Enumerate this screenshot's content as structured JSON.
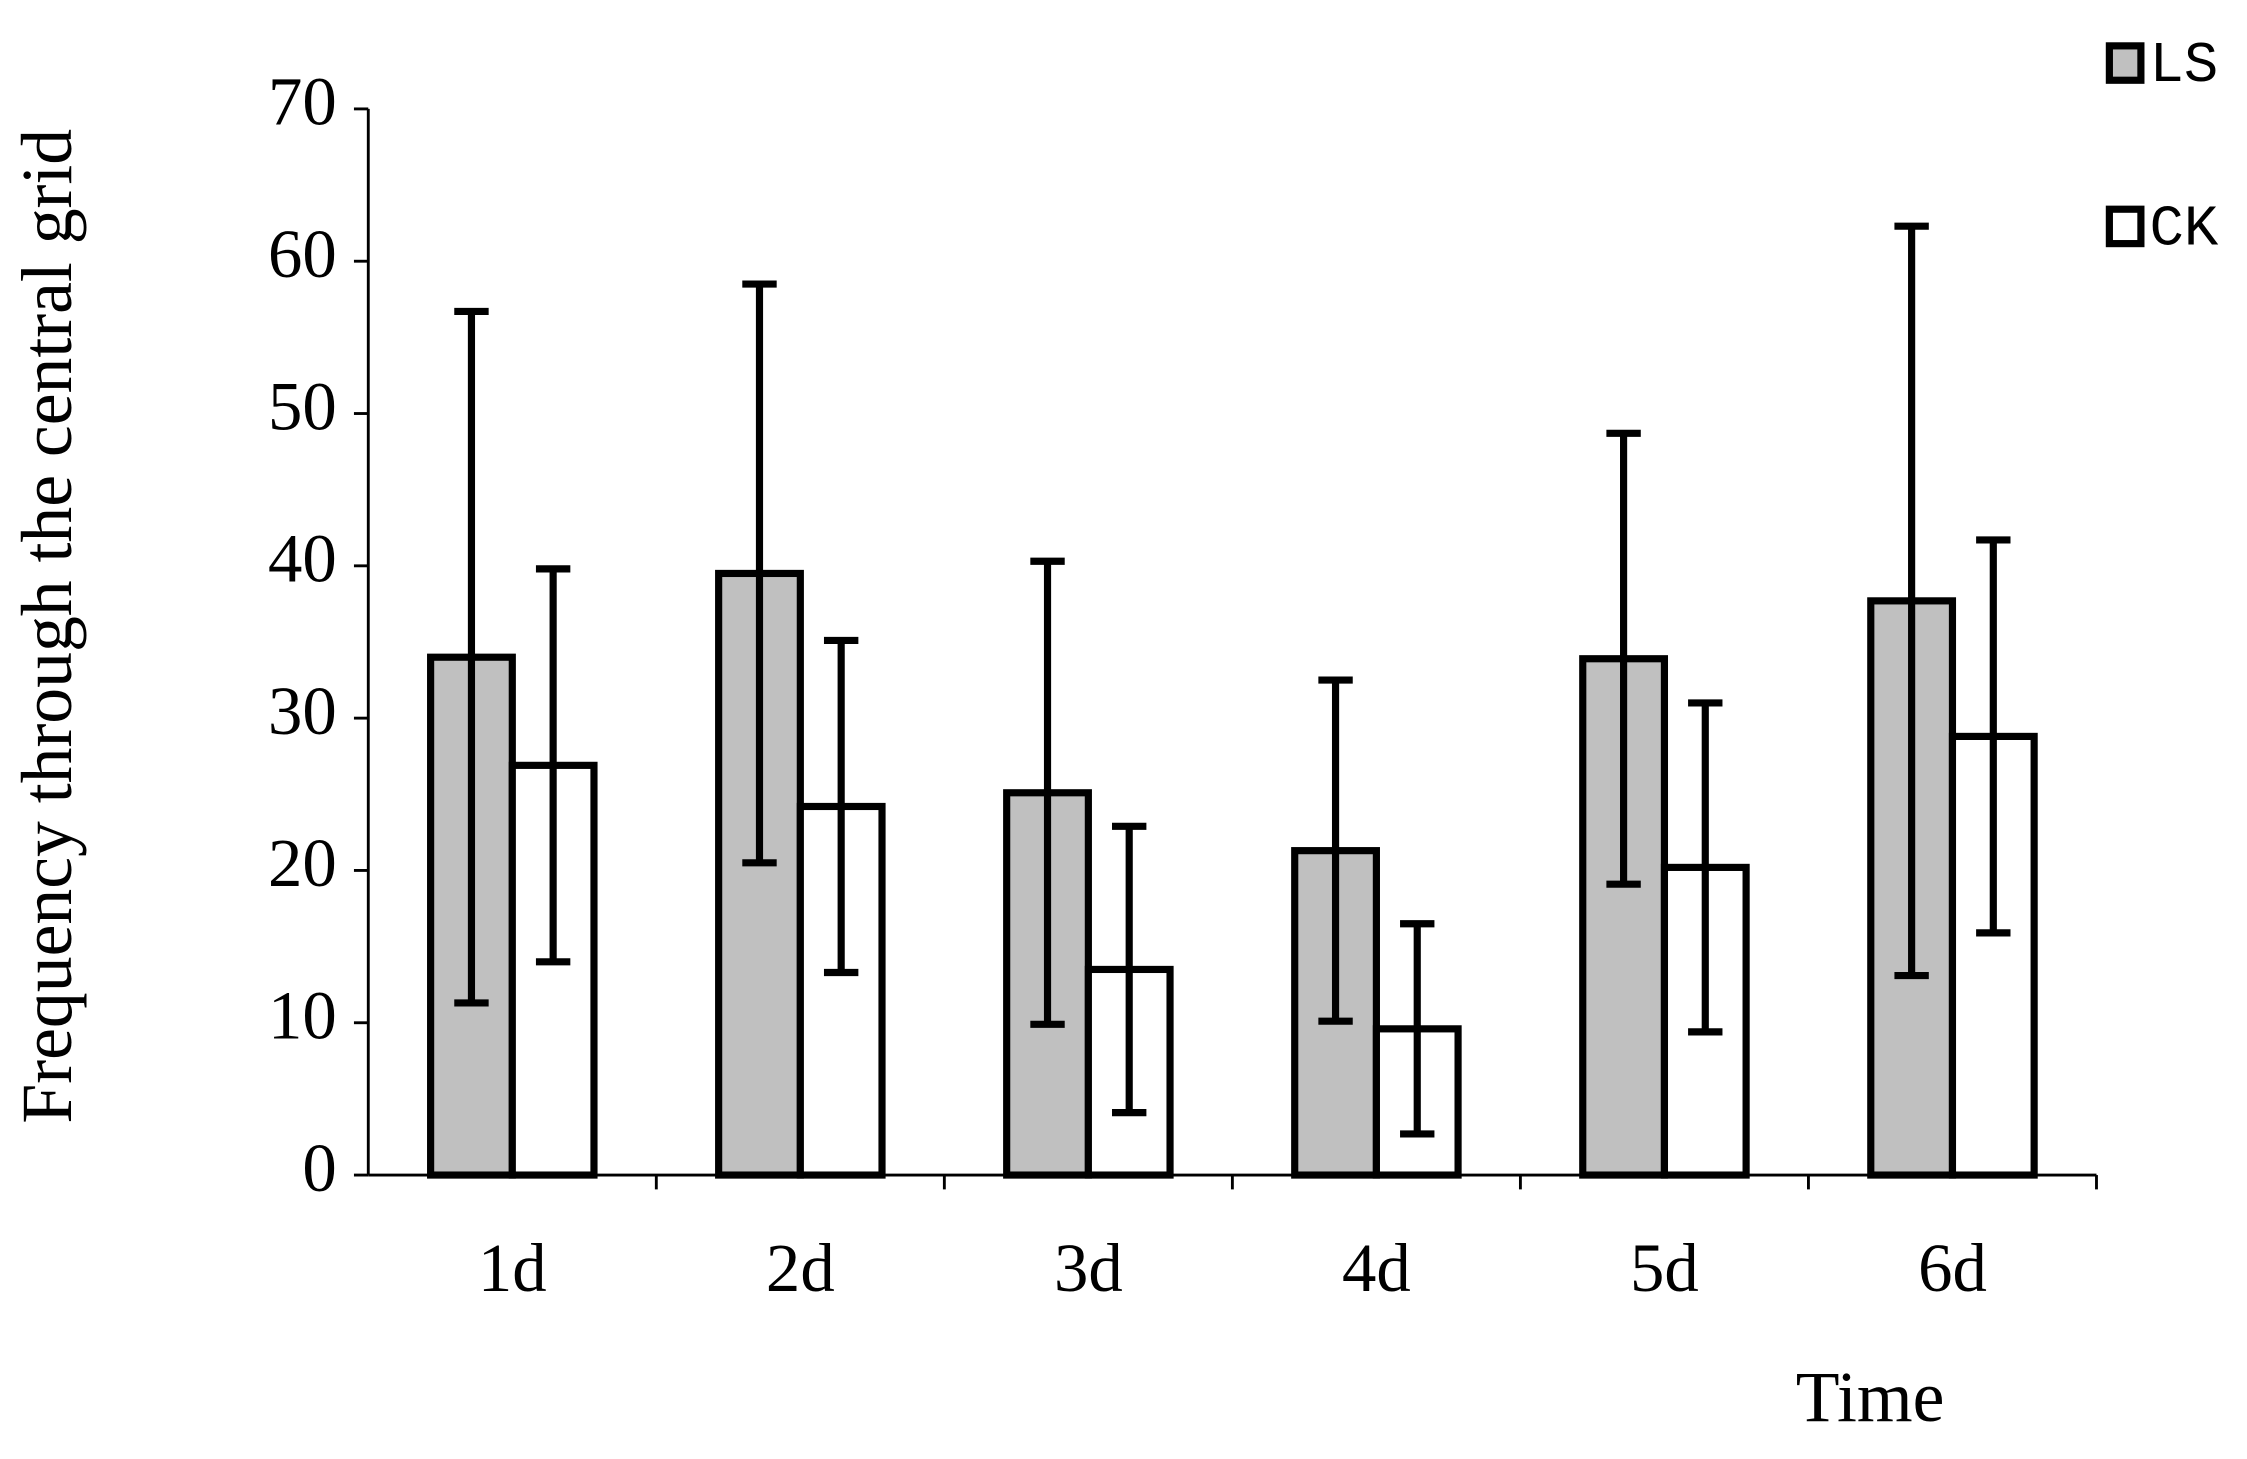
{
  "chart_data": {
    "type": "bar",
    "x_label": "Time",
    "y_label": "Frequency through the central grid",
    "categories": [
      "1d",
      "2d",
      "3d",
      "4d",
      "5d",
      "6d"
    ],
    "series": [
      {
        "name": "LS",
        "color": "#c0c0c0",
        "values": [
          34.0,
          39.5,
          25.1,
          21.3,
          33.9,
          37.7
        ],
        "errors": [
          22.7,
          19.0,
          15.2,
          11.2,
          14.8,
          24.6
        ]
      },
      {
        "name": "CK",
        "color": "#ffffff",
        "values": [
          26.9,
          24.2,
          13.5,
          9.6,
          20.2,
          28.8
        ],
        "errors": [
          12.9,
          10.9,
          9.4,
          6.9,
          10.8,
          12.9
        ]
      }
    ],
    "ylim": [
      0,
      70
    ],
    "yticks": [
      0,
      10,
      20,
      30,
      40,
      50,
      60,
      70
    ],
    "legend": "top-right"
  }
}
